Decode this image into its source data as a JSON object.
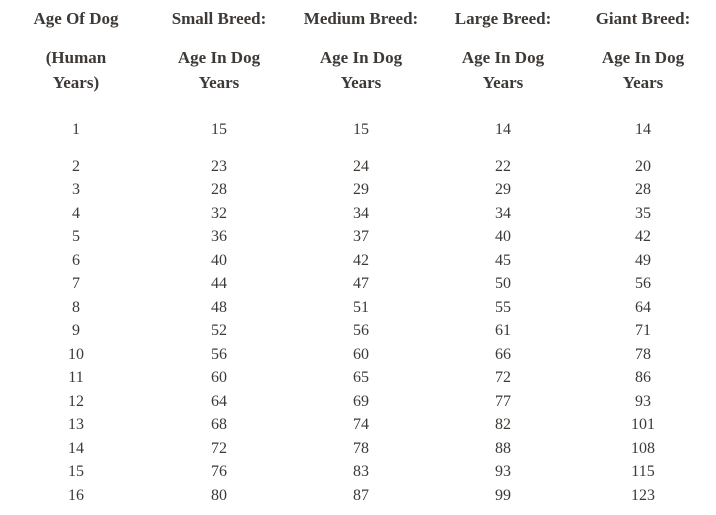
{
  "chart_data": {
    "type": "table",
    "title": "",
    "columns": [
      {
        "title": "Age Of Dog",
        "subtitle_line1": "(Human",
        "subtitle_line2": "Years)"
      },
      {
        "title": "Small Breed:",
        "subtitle_line1": "Age In Dog",
        "subtitle_line2": "Years"
      },
      {
        "title": "Medium Breed:",
        "subtitle_line1": "Age In Dog",
        "subtitle_line2": "Years"
      },
      {
        "title": "Large Breed:",
        "subtitle_line1": "Age In Dog",
        "subtitle_line2": "Years"
      },
      {
        "title": "Giant Breed:",
        "subtitle_line1": "Age In Dog",
        "subtitle_line2": "Years"
      }
    ],
    "column_full_labels": [
      "Age Of Dog (Human Years)",
      "Small Breed: Age In Dog Years",
      "Medium Breed: Age In Dog Years",
      "Large Breed: Age In Dog Years",
      "Giant Breed: Age In Dog Years"
    ],
    "rows": [
      [
        1,
        15,
        15,
        14,
        14
      ],
      [
        2,
        23,
        24,
        22,
        20
      ],
      [
        3,
        28,
        29,
        29,
        28
      ],
      [
        4,
        32,
        34,
        34,
        35
      ],
      [
        5,
        36,
        37,
        40,
        42
      ],
      [
        6,
        40,
        42,
        45,
        49
      ],
      [
        7,
        44,
        47,
        50,
        56
      ],
      [
        8,
        48,
        51,
        55,
        64
      ],
      [
        9,
        52,
        56,
        61,
        71
      ],
      [
        10,
        56,
        60,
        66,
        78
      ],
      [
        11,
        60,
        65,
        72,
        86
      ],
      [
        12,
        64,
        69,
        77,
        93
      ],
      [
        13,
        68,
        74,
        82,
        101
      ],
      [
        14,
        72,
        78,
        88,
        108
      ],
      [
        15,
        76,
        83,
        93,
        115
      ],
      [
        16,
        80,
        87,
        99,
        123
      ]
    ]
  },
  "colors": {
    "text": "#3d3936",
    "background": "#ffffff"
  }
}
